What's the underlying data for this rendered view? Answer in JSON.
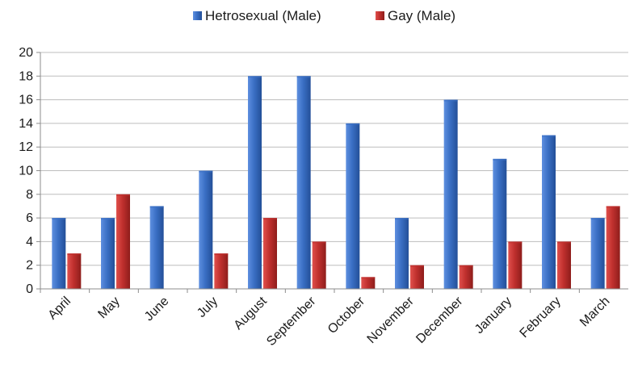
{
  "chart_data": {
    "type": "bar",
    "categories": [
      "April",
      "May",
      "June",
      "July",
      "August",
      "September",
      "October",
      "November",
      "December",
      "January",
      "February",
      "March"
    ],
    "series": [
      {
        "name": "Hetrosexual (Male)",
        "values": [
          6,
          6,
          7,
          10,
          18,
          18,
          14,
          6,
          16,
          11,
          13,
          6
        ],
        "color": "#3A6FC4"
      },
      {
        "name": "Gay (Male)",
        "values": [
          3,
          8,
          0,
          3,
          6,
          4,
          1,
          2,
          2,
          4,
          4,
          7
        ],
        "color": "#C0302E"
      }
    ],
    "title": "",
    "xlabel": "",
    "ylabel": "",
    "ylim": [
      0,
      20
    ],
    "yticks": [
      0,
      2,
      4,
      6,
      8,
      10,
      12,
      14,
      16,
      18,
      20
    ],
    "grid": true,
    "legend_position": "top-center"
  }
}
